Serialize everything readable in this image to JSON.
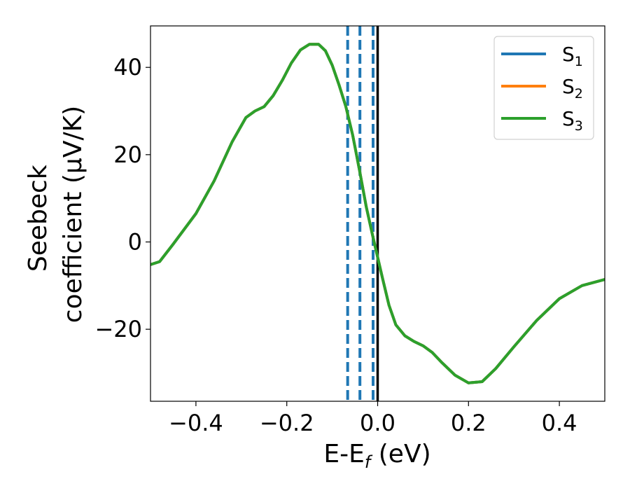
{
  "chart_data": {
    "type": "line",
    "xlabel": "E-E",
    "xlabel_sub": "f",
    "xlabel_unit": " (eV)",
    "ylabel_line1": "Seebeck",
    "ylabel_line2": "coefficient  (μV/K)",
    "xlim": [
      -0.5,
      0.5
    ],
    "ylim": [
      -36.5,
      49.5
    ],
    "xticks": [
      -0.4,
      -0.2,
      0.0,
      0.2,
      0.4
    ],
    "xtick_labels": [
      "−0.4",
      "−0.2",
      "0.0",
      "0.2",
      "0.4"
    ],
    "yticks": [
      -20,
      0,
      20,
      40
    ],
    "ytick_labels": [
      "−20",
      "0",
      "20",
      "40"
    ],
    "grid": false,
    "legend_position": "top-right",
    "series": [
      {
        "name": "S",
        "name_sub": "1",
        "color": "#1f77b4",
        "x": [
          -0.5,
          -0.48,
          -0.45,
          -0.4,
          -0.36,
          -0.32,
          -0.29,
          -0.27,
          -0.25,
          -0.23,
          -0.21,
          -0.19,
          -0.17,
          -0.15,
          -0.13,
          -0.115,
          -0.1,
          -0.085,
          -0.07,
          -0.055,
          -0.04,
          -0.025,
          -0.01,
          0.0,
          0.01,
          0.025,
          0.04,
          0.06,
          0.08,
          0.1,
          0.12,
          0.14,
          0.17,
          0.2,
          0.23,
          0.26,
          0.3,
          0.35,
          0.4,
          0.45,
          0.5
        ],
        "y": [
          -5.2,
          -4.5,
          -0.5,
          6.5,
          14.0,
          23.0,
          28.5,
          30.0,
          31.0,
          33.5,
          37.0,
          41.0,
          44.0,
          45.3,
          45.3,
          43.8,
          40.5,
          36.0,
          31.0,
          24.5,
          16.5,
          8.0,
          1.0,
          -3.5,
          -8.0,
          -14.5,
          -19.0,
          -21.5,
          -22.8,
          -23.8,
          -25.3,
          -27.5,
          -30.5,
          -32.3,
          -32.0,
          -29.0,
          -24.0,
          -18.0,
          -13.0,
          -10.0,
          -8.6
        ]
      },
      {
        "name": "S",
        "name_sub": "2",
        "color": "#ff7f0e",
        "x": [
          -0.5,
          -0.48,
          -0.45,
          -0.4,
          -0.36,
          -0.32,
          -0.29,
          -0.27,
          -0.25,
          -0.23,
          -0.21,
          -0.19,
          -0.17,
          -0.15,
          -0.13,
          -0.115,
          -0.1,
          -0.085,
          -0.07,
          -0.055,
          -0.04,
          -0.025,
          -0.01,
          0.0,
          0.01,
          0.025,
          0.04,
          0.06,
          0.08,
          0.1,
          0.12,
          0.14,
          0.17,
          0.2,
          0.23,
          0.26,
          0.3,
          0.35,
          0.4,
          0.45,
          0.5
        ],
        "y": [
          -5.2,
          -4.5,
          -0.5,
          6.5,
          14.0,
          23.0,
          28.5,
          30.0,
          31.0,
          33.5,
          37.0,
          41.0,
          44.0,
          45.3,
          45.3,
          43.8,
          40.5,
          36.0,
          31.0,
          24.5,
          16.5,
          8.0,
          1.0,
          -3.5,
          -8.0,
          -14.5,
          -19.0,
          -21.5,
          -22.8,
          -23.8,
          -25.3,
          -27.5,
          -30.5,
          -32.3,
          -32.0,
          -29.0,
          -24.0,
          -18.0,
          -13.0,
          -10.0,
          -8.6
        ]
      },
      {
        "name": "S",
        "name_sub": "3",
        "color": "#2ca02c",
        "x": [
          -0.5,
          -0.48,
          -0.45,
          -0.4,
          -0.36,
          -0.32,
          -0.29,
          -0.27,
          -0.25,
          -0.23,
          -0.21,
          -0.19,
          -0.17,
          -0.15,
          -0.13,
          -0.115,
          -0.1,
          -0.085,
          -0.07,
          -0.055,
          -0.04,
          -0.025,
          -0.01,
          0.0,
          0.01,
          0.025,
          0.04,
          0.06,
          0.08,
          0.1,
          0.12,
          0.14,
          0.17,
          0.2,
          0.23,
          0.26,
          0.3,
          0.35,
          0.4,
          0.45,
          0.5
        ],
        "y": [
          -5.2,
          -4.5,
          -0.5,
          6.5,
          14.0,
          23.0,
          28.5,
          30.0,
          31.0,
          33.5,
          37.0,
          41.0,
          44.0,
          45.3,
          45.3,
          43.8,
          40.5,
          36.0,
          31.0,
          24.5,
          16.5,
          8.0,
          1.0,
          -3.5,
          -8.0,
          -14.5,
          -19.0,
          -21.5,
          -22.8,
          -23.8,
          -25.3,
          -27.5,
          -30.5,
          -32.3,
          -32.0,
          -29.0,
          -24.0,
          -18.0,
          -13.0,
          -10.0,
          -8.6
        ]
      }
    ],
    "vlines": [
      {
        "x": -0.066,
        "style": "dashed",
        "color": "#1f77b4"
      },
      {
        "x": -0.039,
        "style": "dashed",
        "color": "#1f77b4"
      },
      {
        "x": -0.01,
        "style": "dashed",
        "color": "#1f77b4"
      },
      {
        "x": 0.0,
        "style": "solid",
        "color": "#000000"
      }
    ]
  }
}
